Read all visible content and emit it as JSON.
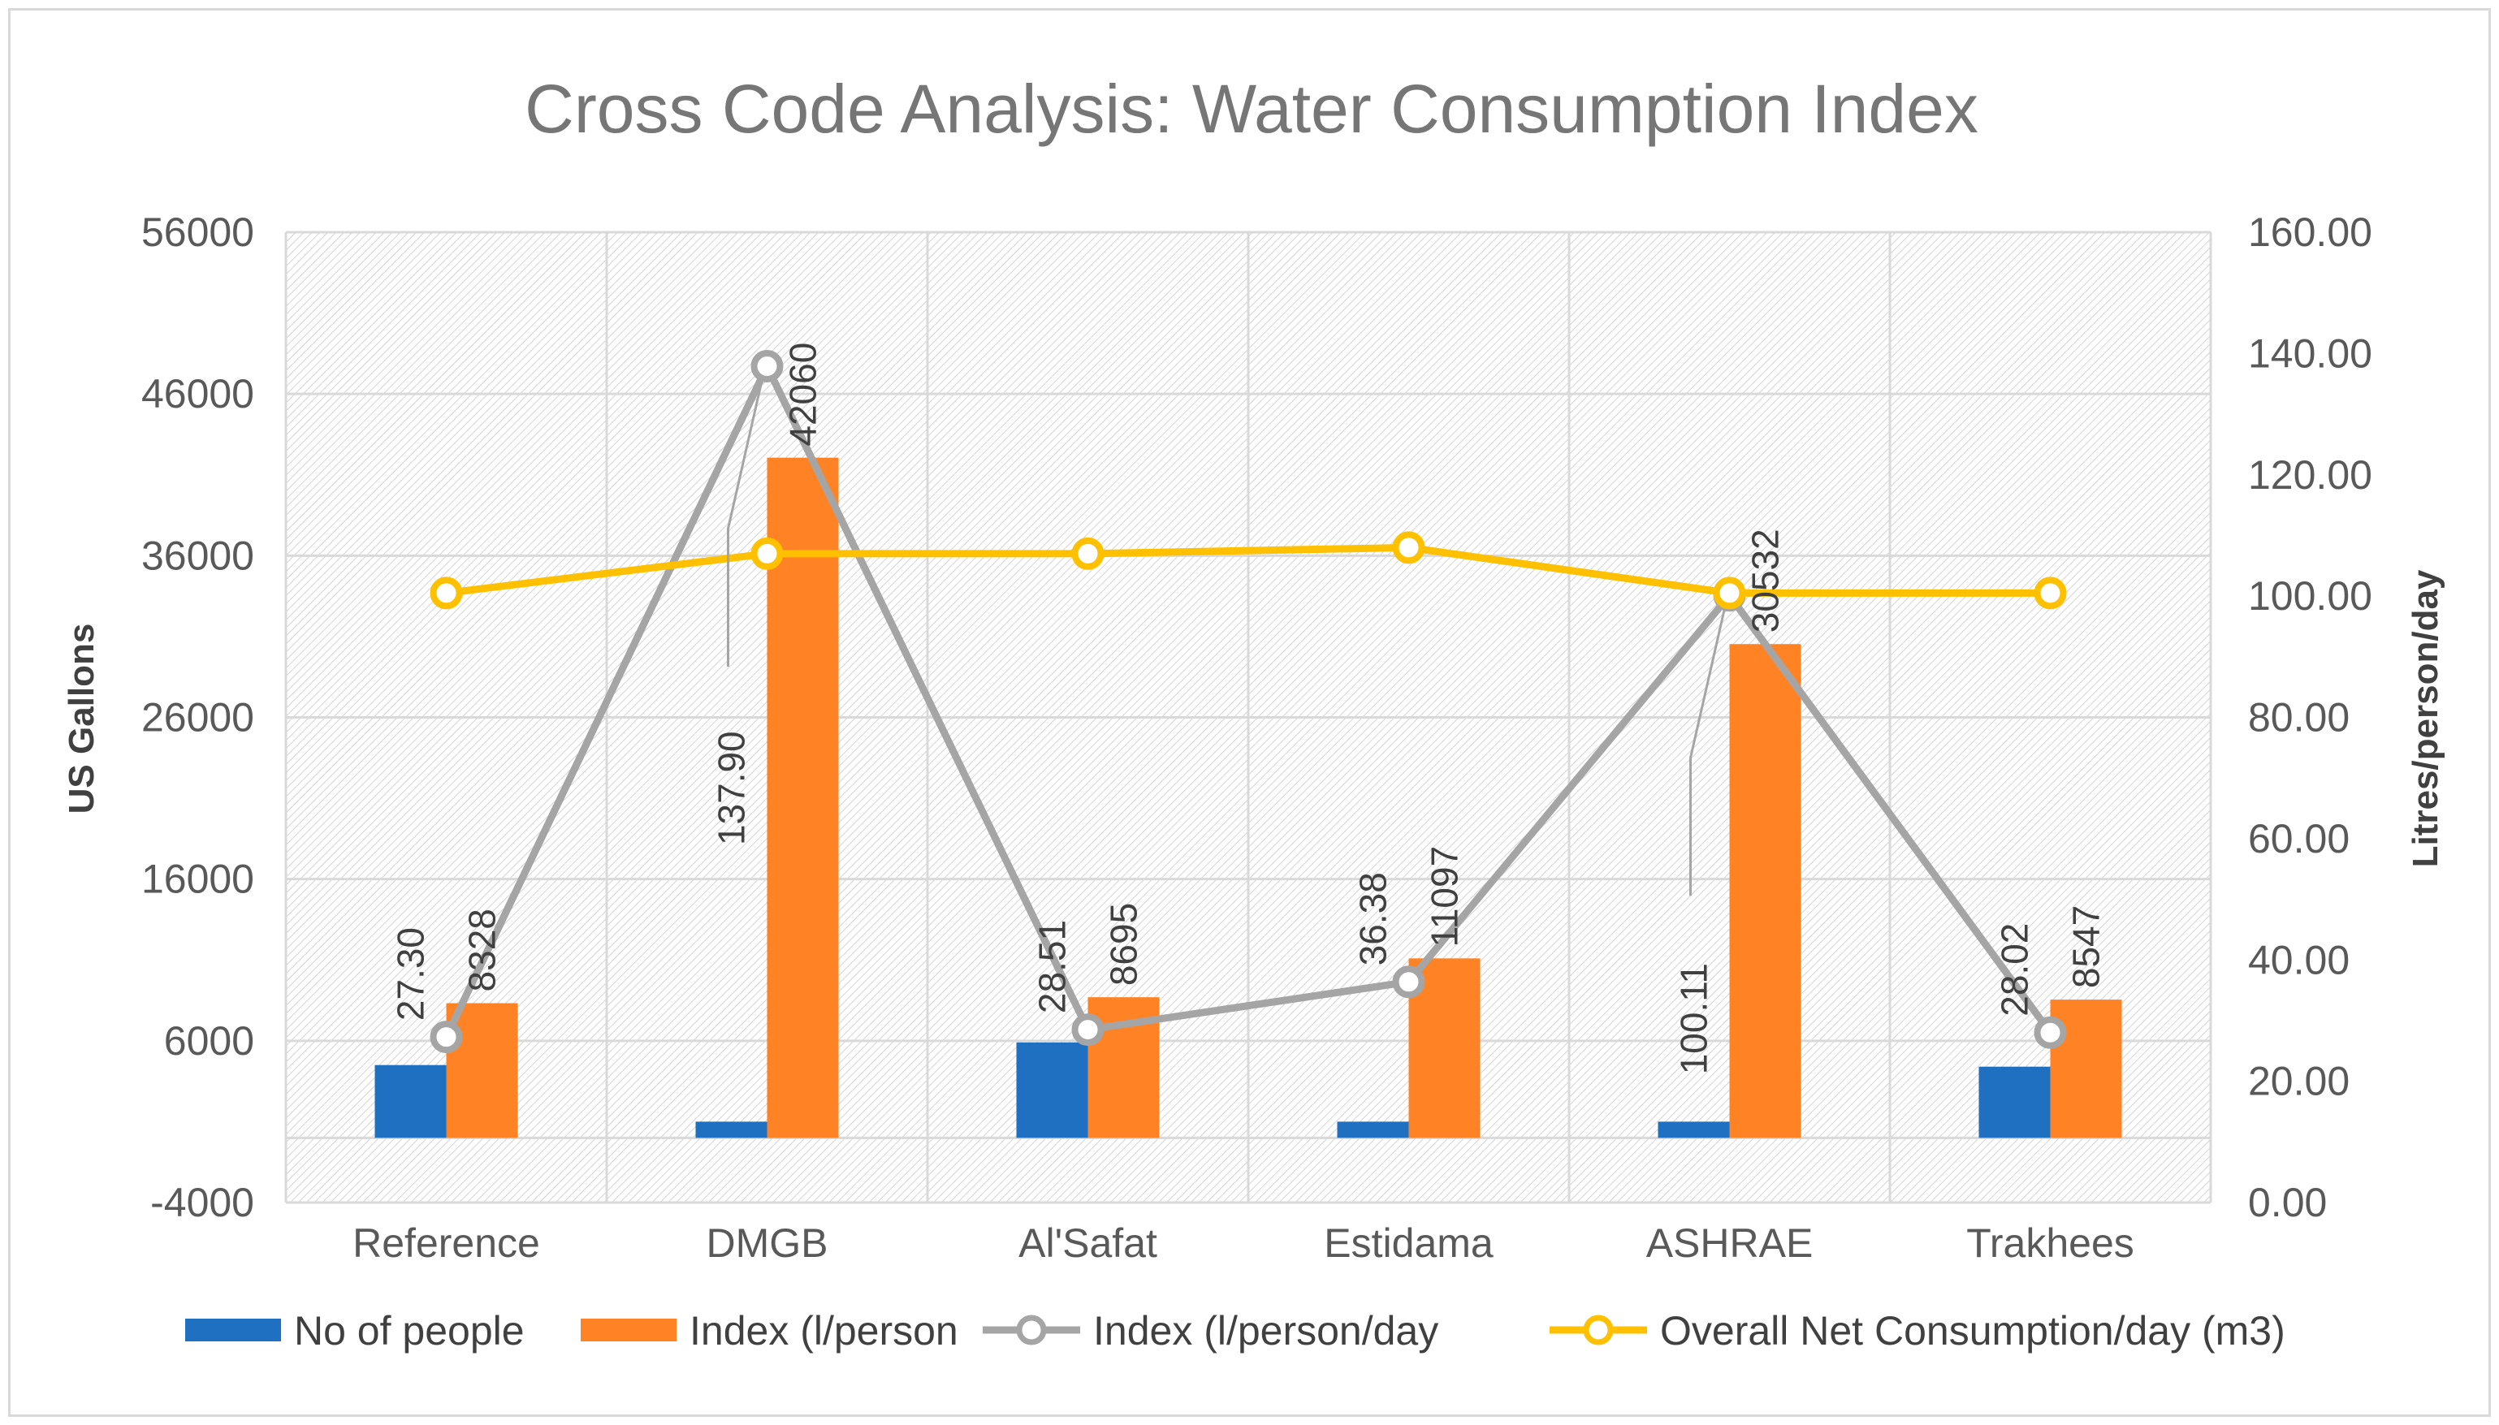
{
  "chart_data": {
    "type": "bar",
    "title": "Cross Code Analysis: Water Consumption Index",
    "categories": [
      "Reference",
      "DMGB",
      "Al'Safat",
      "Estidama",
      "ASHRAE",
      "Trakhees"
    ],
    "y_left": {
      "label": "US Gallons",
      "range": [
        -4000,
        56000
      ],
      "ticks": [
        "56000",
        "46000",
        "36000",
        "26000",
        "16000",
        "6000",
        "-4000"
      ]
    },
    "y_right": {
      "label": "Litres/person/day",
      "range": [
        0,
        160
      ],
      "ticks": [
        "160.00",
        "140.00",
        "120.00",
        "100.00",
        "80.00",
        "60.00",
        "40.00",
        "20.00",
        "0.00"
      ]
    },
    "series": [
      {
        "name": "No of people",
        "type": "bar",
        "axis": "left",
        "color": "#1f70c1",
        "values": [
          4500,
          1000,
          5900,
          1000,
          1000,
          4400
        ]
      },
      {
        "name": "Index (l/person",
        "type": "bar",
        "axis": "left",
        "color": "#ff8325",
        "values": [
          8328,
          42060,
          8695,
          11097,
          30532,
          8547
        ],
        "labels": [
          "8328",
          "42060",
          "8695",
          "11097",
          "30532",
          "8547"
        ]
      },
      {
        "name": "Index (l/person/day",
        "type": "line",
        "axis": "right",
        "color": "#a5a5a5",
        "values": [
          27.3,
          137.9,
          28.51,
          36.38,
          100.11,
          28.02
        ],
        "labels": [
          "27.30",
          "137.90",
          "28.51",
          "36.38",
          "100.11",
          "28.02"
        ]
      },
      {
        "name": "Overall Net Consumption/day (m3)",
        "type": "line",
        "axis": "right",
        "color": "#ffc000",
        "values": [
          100.5,
          107,
          107,
          108,
          100.5,
          100.5
        ]
      }
    ],
    "grid": true,
    "legend_position": "bottom"
  }
}
